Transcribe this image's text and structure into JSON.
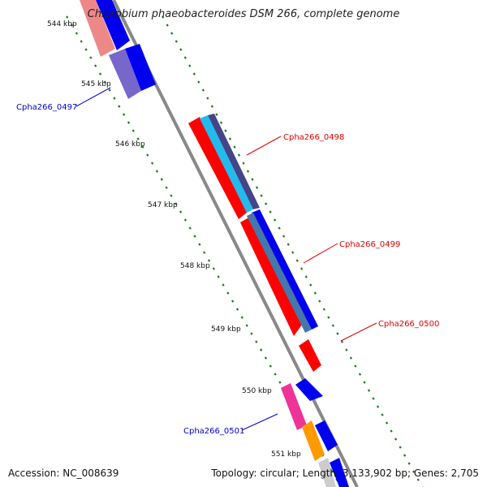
{
  "title": "Chlorobium phaeobacteroides DSM 266, complete genome",
  "footer": {
    "accession": "Accession: NC_008639",
    "summary": "Topology: circular; Length: 3,133,902 bp; Genes: 2,705"
  },
  "ticks": [
    "544 kbp",
    "545 kbp",
    "546 kbp",
    "547 kbp",
    "548 kbp",
    "549 kbp",
    "550 kbp",
    "551 kbp"
  ],
  "gene_labels": [
    {
      "text": "Cpha266_0497",
      "color": "#0000cc"
    },
    {
      "text": "Cpha266_0498",
      "color": "#dd0000"
    },
    {
      "text": "Cpha266_0499",
      "color": "#dd0000"
    },
    {
      "text": "Cpha266_0500",
      "color": "#dd0000"
    },
    {
      "text": "Cpha266_0501",
      "color": "#0000cc"
    }
  ],
  "colors": {
    "backbone": "#888888",
    "tick_marks": "#1a7a1a",
    "forward_red": "#ff0000",
    "cyan": "#22bbee",
    "blue": "#0000ee",
    "navy": "#444488",
    "steel": "#4477aa",
    "salmon": "#ee8888",
    "lavender": "#7766cc",
    "magenta": "#ee3399",
    "orange": "#ff9900",
    "light_grey": "#cccccc"
  }
}
